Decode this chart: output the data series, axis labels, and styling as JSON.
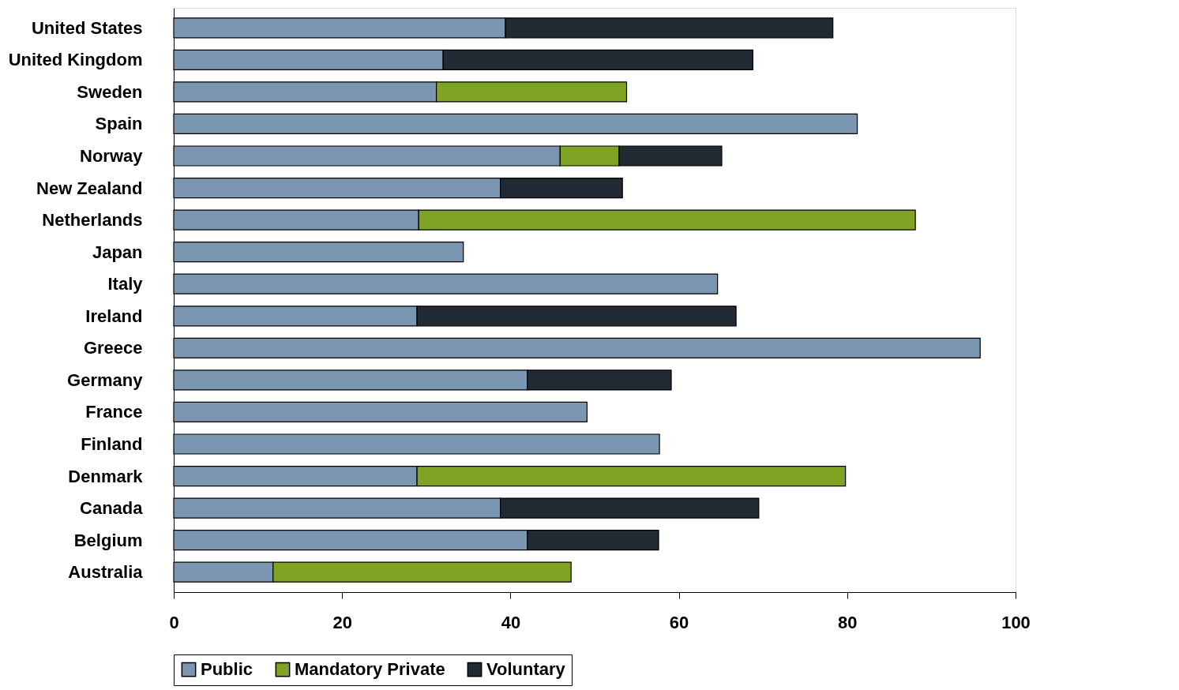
{
  "chart_data": {
    "type": "bar",
    "orientation": "horizontal",
    "stacked": true,
    "categories": [
      "United States",
      "United Kingdom",
      "Sweden",
      "Spain",
      "Norway",
      "New Zealand",
      "Netherlands",
      "Japan",
      "Italy",
      "Ireland",
      "Greece",
      "Germany",
      "France",
      "Finland",
      "Denmark",
      "Canada",
      "Belgium",
      "Australia"
    ],
    "series": [
      {
        "name": "Public",
        "color": "#7b96b0",
        "values": [
          39.4,
          32.0,
          31.2,
          81.2,
          45.9,
          38.8,
          29.1,
          34.4,
          64.6,
          28.9,
          95.8,
          42.0,
          49.1,
          57.7,
          28.9,
          38.8,
          42.0,
          11.8
        ]
      },
      {
        "name": "Mandatory Private",
        "color": "#7fa323",
        "values": [
          null,
          null,
          22.6,
          null,
          7.0,
          null,
          59.0,
          null,
          null,
          null,
          null,
          null,
          null,
          null,
          50.9,
          null,
          null,
          35.4
        ]
      },
      {
        "name": "Voluntary",
        "color": "#222b33",
        "values": [
          38.9,
          36.8,
          null,
          null,
          12.2,
          14.5,
          null,
          null,
          null,
          37.9,
          null,
          17.1,
          null,
          null,
          null,
          30.7,
          15.6,
          null
        ]
      }
    ],
    "xlim": [
      0,
      100
    ],
    "xticks": [
      0,
      20,
      40,
      60,
      80,
      100
    ],
    "grid": false,
    "legend": "bottom"
  }
}
